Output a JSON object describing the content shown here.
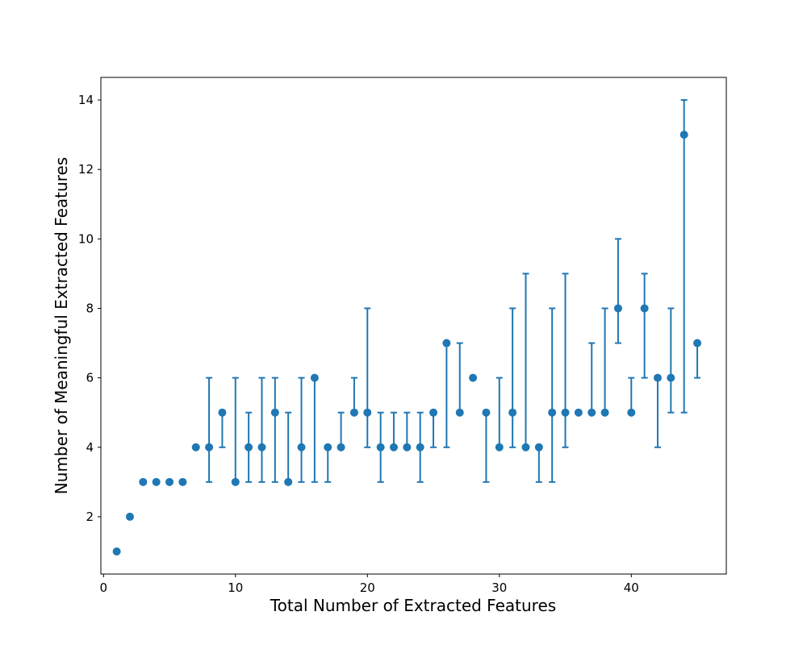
{
  "chart_data": {
    "type": "scatter",
    "title": "",
    "xlabel": "Total Number of Extracted Features",
    "ylabel": "Number of Meaningful Extracted Features",
    "xlim": [
      -0.2,
      47.2
    ],
    "ylim": [
      0.35,
      14.65
    ],
    "x_ticks": [
      0,
      10,
      20,
      30,
      40
    ],
    "y_ticks": [
      2,
      4,
      6,
      8,
      10,
      12,
      14
    ],
    "grid": false,
    "marker_color": "#1f77b4",
    "points": [
      {
        "x": 1,
        "y": 1
      },
      {
        "x": 2,
        "y": 2
      },
      {
        "x": 3,
        "y": 3
      },
      {
        "x": 4,
        "y": 3
      },
      {
        "x": 5,
        "y": 3
      },
      {
        "x": 6,
        "y": 3
      },
      {
        "x": 7,
        "y": 4
      },
      {
        "x": 8,
        "y": 4,
        "low": 3,
        "high": 6
      },
      {
        "x": 9,
        "y": 5,
        "low": 4,
        "high": 5
      },
      {
        "x": 10,
        "y": 3,
        "low": 3,
        "high": 6
      },
      {
        "x": 11,
        "y": 4,
        "low": 3,
        "high": 5
      },
      {
        "x": 12,
        "y": 4,
        "low": 3,
        "high": 6
      },
      {
        "x": 13,
        "y": 5,
        "low": 3,
        "high": 6
      },
      {
        "x": 14,
        "y": 3,
        "low": 3,
        "high": 5
      },
      {
        "x": 15,
        "y": 4,
        "low": 3,
        "high": 6
      },
      {
        "x": 16,
        "y": 6,
        "low": 3,
        "high": 6
      },
      {
        "x": 17,
        "y": 4,
        "low": 3,
        "high": 4
      },
      {
        "x": 18,
        "y": 4,
        "low": 4,
        "high": 5
      },
      {
        "x": 19,
        "y": 5,
        "low": 5,
        "high": 6
      },
      {
        "x": 20,
        "y": 5,
        "low": 4,
        "high": 8
      },
      {
        "x": 21,
        "y": 4,
        "low": 3,
        "high": 5
      },
      {
        "x": 22,
        "y": 4,
        "low": 4,
        "high": 5
      },
      {
        "x": 23,
        "y": 4,
        "low": 4,
        "high": 5
      },
      {
        "x": 24,
        "y": 4,
        "low": 3,
        "high": 5
      },
      {
        "x": 25,
        "y": 5,
        "low": 4,
        "high": 5
      },
      {
        "x": 26,
        "y": 7,
        "low": 4,
        "high": 7
      },
      {
        "x": 27,
        "y": 5,
        "low": 5,
        "high": 7
      },
      {
        "x": 28,
        "y": 6
      },
      {
        "x": 29,
        "y": 5,
        "low": 3,
        "high": 5
      },
      {
        "x": 30,
        "y": 4,
        "low": 4,
        "high": 6
      },
      {
        "x": 31,
        "y": 5,
        "low": 4,
        "high": 8
      },
      {
        "x": 32,
        "y": 4,
        "low": 4,
        "high": 9
      },
      {
        "x": 33,
        "y": 4,
        "low": 3,
        "high": 4
      },
      {
        "x": 34,
        "y": 5,
        "low": 3,
        "high": 8
      },
      {
        "x": 35,
        "y": 5,
        "low": 4,
        "high": 9
      },
      {
        "x": 36,
        "y": 5
      },
      {
        "x": 37,
        "y": 5,
        "low": 5,
        "high": 7
      },
      {
        "x": 38,
        "y": 5,
        "low": 5,
        "high": 8
      },
      {
        "x": 39,
        "y": 8,
        "low": 7,
        "high": 10
      },
      {
        "x": 40,
        "y": 5,
        "low": 5,
        "high": 6
      },
      {
        "x": 41,
        "y": 8,
        "low": 6,
        "high": 9
      },
      {
        "x": 42,
        "y": 6,
        "low": 4,
        "high": 6
      },
      {
        "x": 43,
        "y": 6,
        "low": 5,
        "high": 8
      },
      {
        "x": 44,
        "y": 13,
        "low": 5,
        "high": 14
      },
      {
        "x": 45,
        "y": 7,
        "low": 6,
        "high": 7
      }
    ]
  }
}
